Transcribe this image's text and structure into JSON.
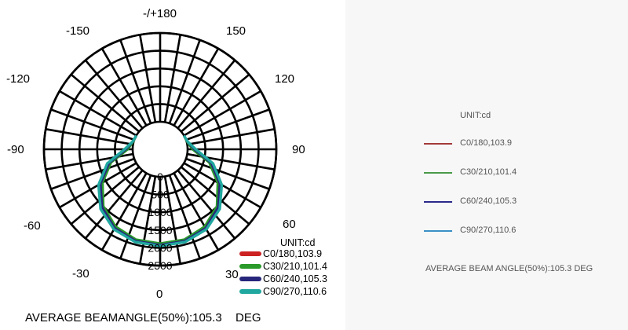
{
  "chart_data": {
    "type": "polar",
    "angle_labels": [
      "-/+180",
      "-150",
      "150",
      "-120",
      "120",
      "-90",
      "90",
      "-60",
      "60",
      "-30",
      "30",
      "0"
    ],
    "radial_ticks": [
      "0",
      "500",
      "1000",
      "1500",
      "2000",
      "2500"
    ],
    "rmax": 2500,
    "unit_label": "UNIT:cd",
    "series": [
      {
        "name": "C0/180,103.9",
        "color": "#cc2222",
        "r": {
          "0": 1900,
          "15": 1880,
          "30": 1760,
          "45": 1520,
          "60": 1140,
          "75": 700,
          "90": 160,
          "105": 25,
          "120": 0
        }
      },
      {
        "name": "C30/210,101.4",
        "color": "#2a9a2a",
        "r": {
          "0": 1880,
          "15": 1860,
          "30": 1740,
          "45": 1490,
          "60": 1100,
          "75": 660,
          "90": 140,
          "105": 20,
          "120": 0
        }
      },
      {
        "name": "C60/240,105.3",
        "color": "#26267a",
        "r": {
          "0": 1920,
          "15": 1900,
          "30": 1790,
          "45": 1540,
          "60": 1170,
          "75": 720,
          "90": 190,
          "105": 30,
          "120": 0
        }
      },
      {
        "name": "C90/270,110.6",
        "color": "#20a8a0",
        "r": {
          "0": 1950,
          "15": 1930,
          "30": 1830,
          "45": 1600,
          "60": 1230,
          "75": 770,
          "90": 230,
          "105": 35,
          "120": 0
        }
      }
    ],
    "beam_angle_label": "AVERAGE BEAMANGLE(50%):105.3",
    "beam_angle_unit": "DEG"
  },
  "right_panel": {
    "unit_label": "UNIT:cd",
    "legend": [
      {
        "label": "C0/180,103.9",
        "color": "#a33a3a"
      },
      {
        "label": "C30/210,101.4",
        "color": "#4a9a4a"
      },
      {
        "label": "C60/240,105.3",
        "color": "#2a2a8a"
      },
      {
        "label": "C90/270,110.6",
        "color": "#3a8fc8"
      }
    ],
    "beam_angle_text": "AVERAGE BEAM  ANGLE(50%):105.3  DEG"
  }
}
